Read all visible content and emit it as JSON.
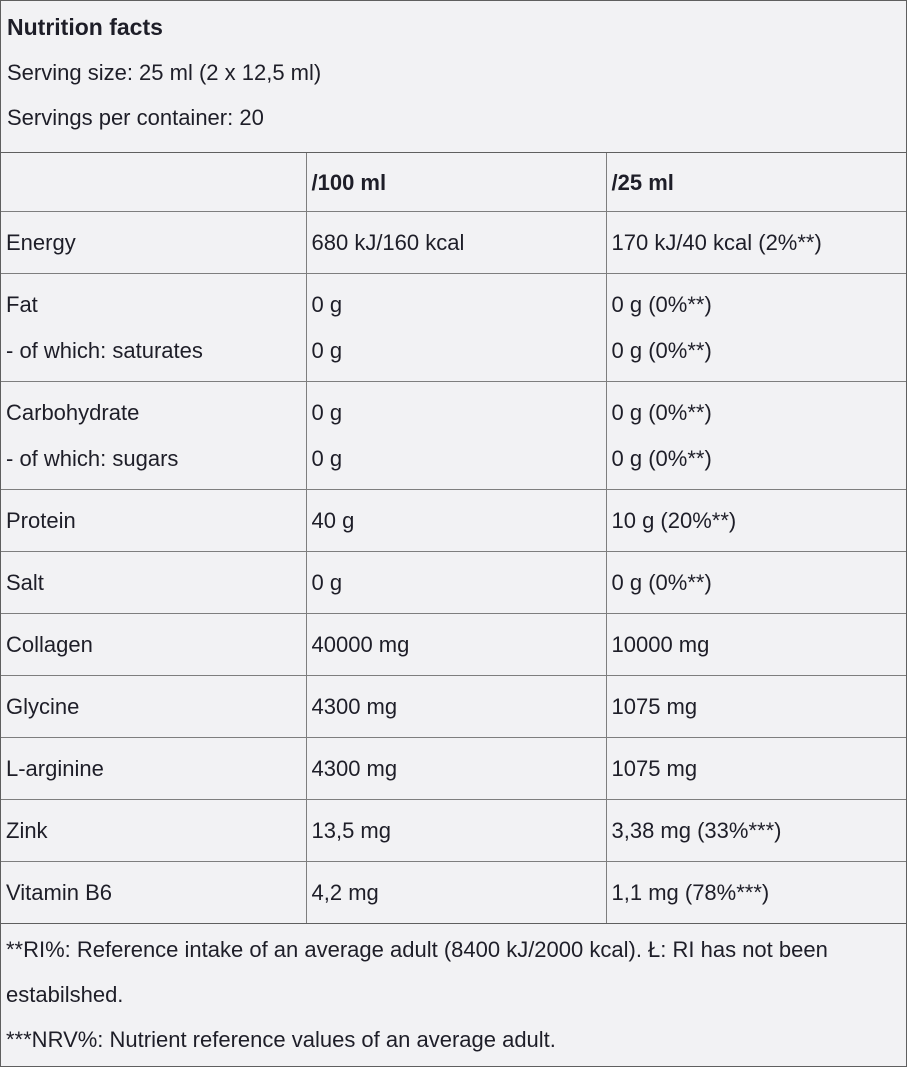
{
  "header": {
    "title": "Nutrition facts",
    "serving_size": "Serving size: 25 ml (2 x 12,5 ml)",
    "servings_per_container": "Servings per container: 20"
  },
  "table": {
    "columns": [
      "",
      "/100 ml",
      "/25 ml"
    ],
    "rows": [
      {
        "name": [
          "Energy"
        ],
        "per_100ml": [
          "680 kJ/160 kcal"
        ],
        "per_25ml": [
          "170 kJ/40 kcal (2%**)"
        ]
      },
      {
        "name": [
          "Fat",
          "- of which: saturates"
        ],
        "per_100ml": [
          "0 g",
          "0 g"
        ],
        "per_25ml": [
          "0 g (0%**)",
          "0 g (0%**)"
        ]
      },
      {
        "name": [
          "Carbohydrate",
          "- of which: sugars"
        ],
        "per_100ml": [
          "0 g",
          "0 g"
        ],
        "per_25ml": [
          "0 g (0%**)",
          "0 g (0%**)"
        ]
      },
      {
        "name": [
          "Protein"
        ],
        "per_100ml": [
          "40 g"
        ],
        "per_25ml": [
          "10 g (20%**)"
        ]
      },
      {
        "name": [
          "Salt"
        ],
        "per_100ml": [
          "0 g"
        ],
        "per_25ml": [
          "0 g (0%**)"
        ]
      },
      {
        "name": [
          "Collagen"
        ],
        "per_100ml": [
          "40000 mg"
        ],
        "per_25ml": [
          "10000 mg"
        ]
      },
      {
        "name": [
          "Glycine"
        ],
        "per_100ml": [
          "4300 mg"
        ],
        "per_25ml": [
          "1075 mg"
        ]
      },
      {
        "name": [
          "L-arginine"
        ],
        "per_100ml": [
          "4300 mg"
        ],
        "per_25ml": [
          "1075 mg"
        ]
      },
      {
        "name": [
          "Zink"
        ],
        "per_100ml": [
          "13,5 mg"
        ],
        "per_25ml": [
          "3,38 mg (33%***)"
        ]
      },
      {
        "name": [
          "Vitamin B6"
        ],
        "per_100ml": [
          "4,2 mg"
        ],
        "per_25ml": [
          "1,1 mg (78%***)"
        ]
      }
    ]
  },
  "footnotes": [
    "**RI%: Reference intake of an average adult (8400 kJ/2000 kcal). Ł: RI has not been estabilshed.",
    "***NRV%: Nutrient reference values of an average adult."
  ],
  "colors": {
    "text": "#1e1e28",
    "border_inner": "#7e7e7e",
    "border_outer": "#5f5f5f",
    "background": "#f2f2f4"
  }
}
